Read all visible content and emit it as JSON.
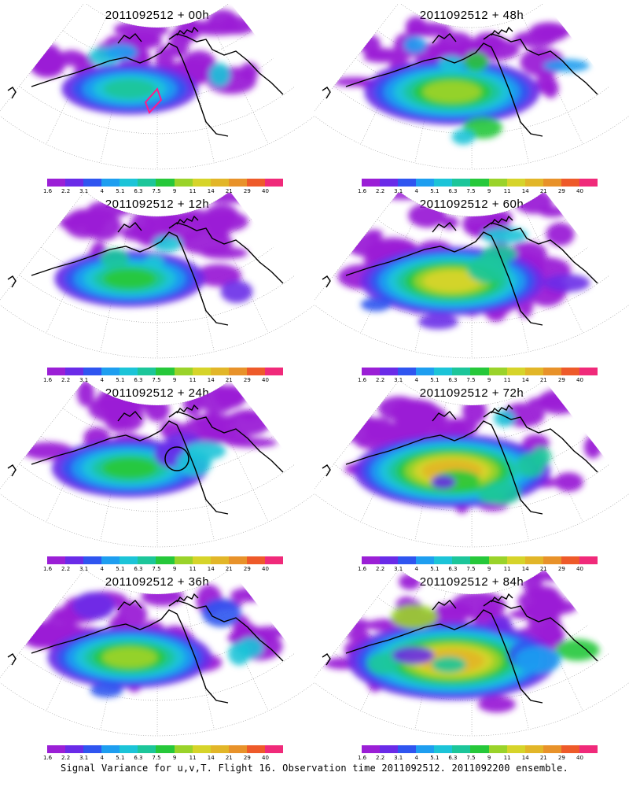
{
  "panels": [
    {
      "title": "2011092512 + 00h",
      "column": "left",
      "row": 0,
      "intensity": 0.25,
      "marker": "diamond"
    },
    {
      "title": "2011092512 + 48h",
      "column": "right",
      "row": 0,
      "intensity": 0.55,
      "marker": ""
    },
    {
      "title": "2011092512 + 12h",
      "column": "left",
      "row": 1,
      "intensity": 0.35,
      "marker": ""
    },
    {
      "title": "2011092512 + 60h",
      "column": "right",
      "row": 1,
      "intensity": 0.6,
      "marker": ""
    },
    {
      "title": "2011092512 + 24h",
      "column": "left",
      "row": 2,
      "intensity": 0.4,
      "marker": "circle"
    },
    {
      "title": "2011092512 + 72h",
      "column": "right",
      "row": 2,
      "intensity": 0.7,
      "marker": ""
    },
    {
      "title": "2011092512 + 36h",
      "column": "left",
      "row": 3,
      "intensity": 0.45,
      "marker": ""
    },
    {
      "title": "2011092512 + 84h",
      "column": "right",
      "row": 3,
      "intensity": 0.8,
      "marker": ""
    }
  ],
  "colorbar": {
    "colors": [
      "#9b1fd6",
      "#6a2be8",
      "#2f55f0",
      "#1e9ef0",
      "#1cc4d8",
      "#1cc69a",
      "#26c83a",
      "#9ad32a",
      "#d6d42a",
      "#e2b628",
      "#e8922a",
      "#ee5a2a",
      "#f02a7a"
    ],
    "labels": [
      "1.6",
      "2.2",
      "3.1",
      "4",
      "5.1",
      "6.3",
      "7.5",
      "9",
      "11",
      "14",
      "21",
      "29",
      "40"
    ]
  },
  "footer": "Signal Variance for u,v,T. Flight 16. Observation time 2011092512. 2011092200 ensemble."
}
